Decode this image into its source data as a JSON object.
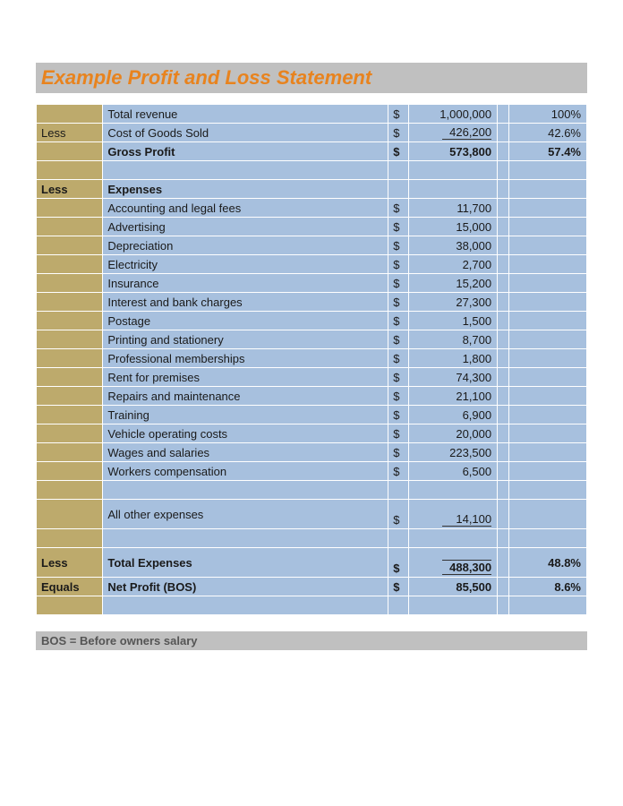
{
  "title": "Example Profit and Loss Statement",
  "colors": {
    "title_text": "#e8831e",
    "title_bg": "#c0c0c0",
    "label_col_bg": "#bdaa6c",
    "data_bg": "#a7c0de",
    "page_bg": "#ffffff"
  },
  "summary": {
    "total_revenue": {
      "label": "Total revenue",
      "sym": "$",
      "value": "1,000,000",
      "pct": "100%"
    },
    "cogs": {
      "prefix": "Less",
      "label": "Cost of Goods Sold",
      "sym": "$",
      "value": "426,200",
      "pct": "42.6%"
    },
    "gross_profit": {
      "label": "Gross Profit",
      "sym": "$",
      "value": "573,800",
      "pct": "57.4%"
    }
  },
  "expenses_header": {
    "prefix": "Less",
    "label": "Expenses"
  },
  "expenses": [
    {
      "label": "Accounting and legal fees",
      "sym": "$",
      "value": "11,700"
    },
    {
      "label": "Advertising",
      "sym": "$",
      "value": "15,000"
    },
    {
      "label": "Depreciation",
      "sym": "$",
      "value": "38,000"
    },
    {
      "label": "Electricity",
      "sym": "$",
      "value": "2,700"
    },
    {
      "label": "Insurance",
      "sym": "$",
      "value": "15,200"
    },
    {
      "label": "Interest and bank charges",
      "sym": "$",
      "value": "27,300"
    },
    {
      "label": "Postage",
      "sym": "$",
      "value": "1,500"
    },
    {
      "label": "Printing and stationery",
      "sym": "$",
      "value": "8,700"
    },
    {
      "label": "Professional memberships",
      "sym": "$",
      "value": "1,800"
    },
    {
      "label": "Rent for premises",
      "sym": "$",
      "value": "74,300"
    },
    {
      "label": "Repairs and maintenance",
      "sym": "$",
      "value": "21,100"
    },
    {
      "label": "Training",
      "sym": "$",
      "value": "6,900"
    },
    {
      "label": "Vehicle operating costs",
      "sym": "$",
      "value": "20,000"
    },
    {
      "label": "Wages and salaries",
      "sym": "$",
      "value": "223,500"
    },
    {
      "label": "Workers compensation",
      "sym": "$",
      "value": "6,500"
    }
  ],
  "other_expenses": {
    "label": "All other expenses",
    "sym": "$",
    "value": "14,100"
  },
  "total_expenses": {
    "prefix": "Less",
    "label": "Total Expenses",
    "sym": "$",
    "value": "488,300",
    "pct": "48.8%"
  },
  "net_profit": {
    "prefix": "Equals",
    "label": "Net Profit (BOS)",
    "sym": "$",
    "value": "85,500",
    "pct": "8.6%"
  },
  "footnote": "BOS = Before owners salary"
}
